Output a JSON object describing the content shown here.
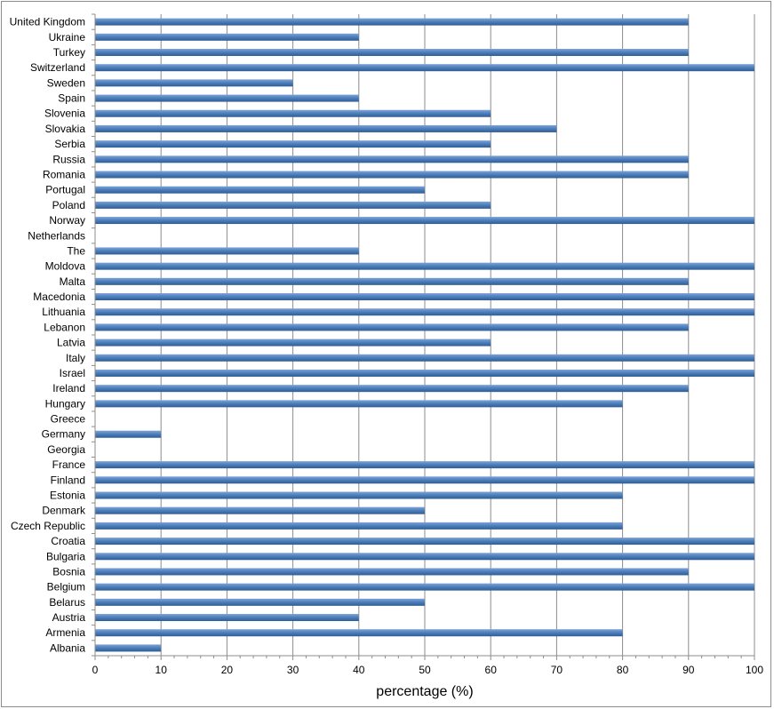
{
  "chart_data": {
    "type": "bar",
    "orientation": "horizontal",
    "categories": [
      "United Kingdom",
      "Ukraine",
      "Turkey",
      "Switzerland",
      "Sweden",
      "Spain",
      "Slovenia",
      "Slovakia",
      "Serbia",
      "Russia",
      "Romania",
      "Portugal",
      "Poland",
      "Norway",
      "Netherlands",
      "The",
      "Moldova",
      "Malta",
      "Macedonia",
      "Lithuania",
      "Lebanon",
      "Latvia",
      "Italy",
      "Israel",
      "Ireland",
      "Hungary",
      "Greece",
      "Germany",
      "Georgia",
      "France",
      "Finland",
      "Estonia",
      "Denmark",
      "Czech Republic",
      "Croatia",
      "Bulgaria",
      "Bosnia",
      "Belgium",
      "Belarus",
      "Austria",
      "Armenia",
      "Albania"
    ],
    "values": [
      90,
      40,
      90,
      100,
      30,
      40,
      60,
      70,
      60,
      90,
      90,
      50,
      60,
      100,
      0,
      40,
      100,
      90,
      100,
      100,
      90,
      60,
      100,
      100,
      90,
      80,
      0,
      10,
      0,
      100,
      100,
      80,
      50,
      80,
      100,
      100,
      90,
      100,
      50,
      40,
      80,
      10
    ],
    "xlabel": "percentage (%)",
    "ylabel": "",
    "xlim": [
      0,
      100
    ],
    "x_ticks": [
      "0",
      "10",
      "20",
      "30",
      "40",
      "50",
      "60",
      "70",
      "80",
      "90",
      "100"
    ],
    "grid": true,
    "legend": "none",
    "colors": {
      "bar": "#4f81bd",
      "bar_light": "#7ea3d6",
      "bar_dark": "#2f5c94",
      "gridline": "#8c8c8c",
      "axis": "#8c8c8c"
    }
  }
}
